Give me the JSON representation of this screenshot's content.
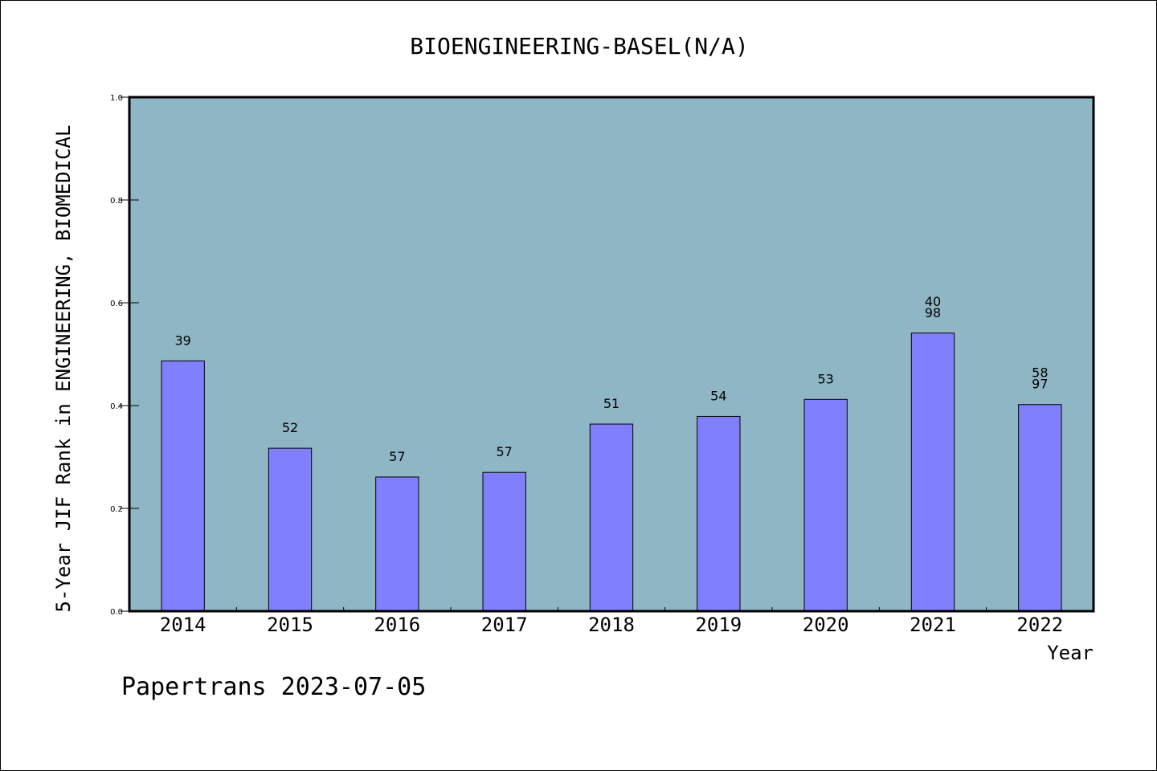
{
  "chart_data": {
    "type": "bar",
    "title": "BIOENGINEERING-BASEL(N/A)",
    "xlabel": "Year",
    "ylabel": "5-Year JIF Rank in ENGINEERING, BIOMEDICAL",
    "categories": [
      "2014",
      "2015",
      "2016",
      "2017",
      "2018",
      "2019",
      "2020",
      "2021",
      "2022"
    ],
    "values": [
      0.487,
      0.317,
      0.261,
      0.27,
      0.364,
      0.379,
      0.412,
      0.541,
      0.402
    ],
    "bar_labels": [
      [
        "39"
      ],
      [
        "52"
      ],
      [
        "57"
      ],
      [
        "57"
      ],
      [
        "51"
      ],
      [
        "54"
      ],
      [
        "53"
      ],
      [
        "40",
        "98"
      ],
      [
        "58",
        "97"
      ]
    ],
    "ylim": [
      0,
      1.0
    ],
    "yticks": [
      "0.0",
      "0.2",
      "0.4",
      "0.6",
      "0.8",
      "1.0"
    ],
    "grid": false,
    "colors": {
      "plot_bg": "#8fb6c4",
      "bar": "#8080ff",
      "bar_edge": "#000000"
    }
  },
  "footer": {
    "text": "Papertrans 2023-07-05"
  }
}
